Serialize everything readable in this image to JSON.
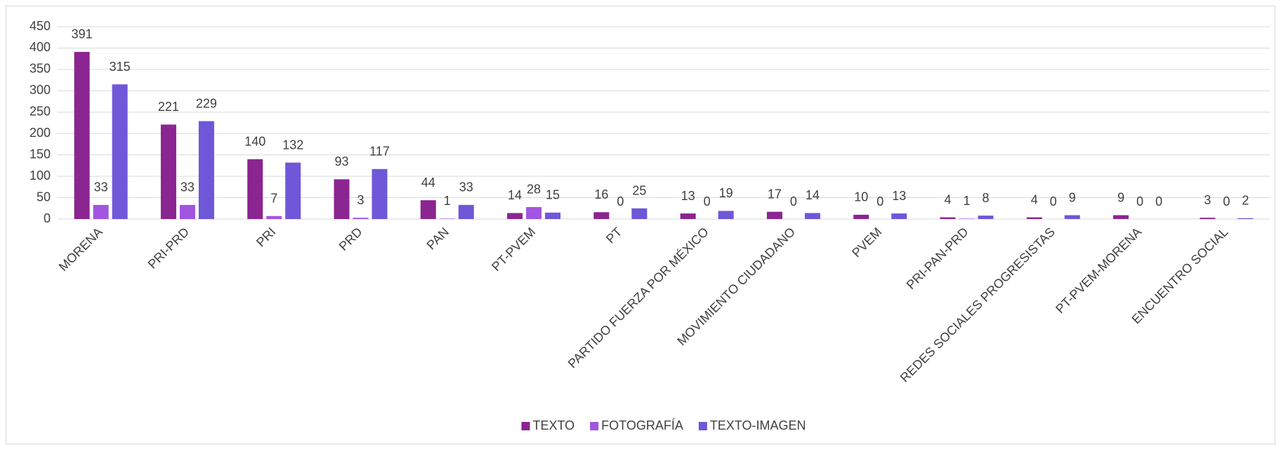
{
  "chart_data": {
    "type": "bar",
    "categories": [
      "MORENA",
      "PRI-PRD",
      "PRI",
      "PRD",
      "PAN",
      "PT-PVEM",
      "PT",
      "PARTIDO FUERZA POR MÉXICO",
      "MOVIMIENTO CIUDADANO",
      "PVEM",
      "PRI-PAN-PRD",
      "REDES SOCIALES PROGRESISTAS",
      "PT-PVEM-MORENA",
      "ENCUENTRO SOCIAL"
    ],
    "series": [
      {
        "name": "TEXTO",
        "color": "#8B2591",
        "values": [
          391,
          221,
          140,
          93,
          44,
          14,
          16,
          13,
          17,
          10,
          4,
          4,
          9,
          3
        ]
      },
      {
        "name": "FOTOGRAFÍA",
        "color": "#A155E0",
        "values": [
          33,
          33,
          7,
          3,
          1,
          28,
          0,
          0,
          0,
          0,
          1,
          0,
          0,
          0
        ]
      },
      {
        "name": "TEXTO-IMAGEN",
        "color": "#6F57D9",
        "values": [
          315,
          229,
          132,
          117,
          33,
          15,
          25,
          19,
          14,
          13,
          8,
          9,
          0,
          2
        ]
      }
    ],
    "ylim": [
      0,
      450
    ],
    "yticks": [
      0,
      50,
      100,
      150,
      200,
      250,
      300,
      350,
      400,
      450
    ],
    "grid": true,
    "legend": "bottom"
  }
}
